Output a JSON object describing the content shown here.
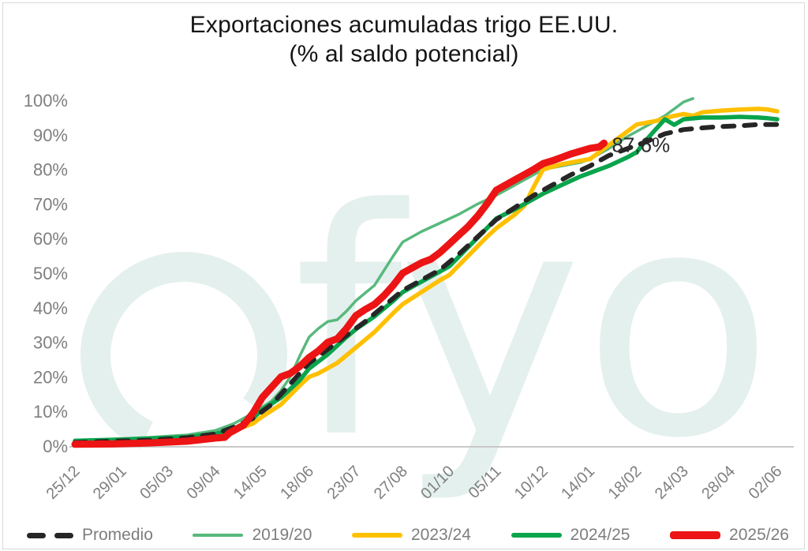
{
  "title": {
    "line1": "Exportaciones acumuladas trigo EE.UU.",
    "line2": "(% al saldo potencial)"
  },
  "watermark": {
    "text": "fyo",
    "color": "#E4F0ED"
  },
  "chart_data": {
    "type": "line",
    "title": "Exportaciones acumuladas trigo EE.UU. (% al saldo potencial)",
    "xlabel": "",
    "ylabel": "",
    "x_unit": "weeks from 25/12 (weekly data, tick every 5 weeks, dd/mm)",
    "xlim": [
      0,
      75
    ],
    "ylim": [
      0,
      100
    ],
    "grid": false,
    "legend_position": "bottom",
    "yticks": [
      0,
      10,
      20,
      30,
      40,
      50,
      60,
      70,
      80,
      90,
      100
    ],
    "xticks": [
      {
        "label": "25/12",
        "week": 0
      },
      {
        "label": "29/01",
        "week": 5
      },
      {
        "label": "05/03",
        "week": 10
      },
      {
        "label": "09/04",
        "week": 15
      },
      {
        "label": "14/05",
        "week": 20
      },
      {
        "label": "18/06",
        "week": 25
      },
      {
        "label": "23/07",
        "week": 30
      },
      {
        "label": "27/08",
        "week": 35
      },
      {
        "label": "01/10",
        "week": 40
      },
      {
        "label": "05/11",
        "week": 45
      },
      {
        "label": "10/12",
        "week": 50
      },
      {
        "label": "14/01",
        "week": 55
      },
      {
        "label": "18/02",
        "week": 60
      },
      {
        "label": "24/03",
        "week": 65
      },
      {
        "label": "28/04",
        "week": 70
      },
      {
        "label": "02/06",
        "week": 75
      }
    ],
    "annotation": {
      "text": "87,6%",
      "week": 56.5,
      "value": 87.6,
      "series": "2025/26"
    },
    "series": [
      {
        "name": "Promedio",
        "color": "#262626",
        "width": 6,
        "dash": true,
        "z": 4,
        "points": [
          [
            0,
            1
          ],
          [
            4,
            1.4
          ],
          [
            8,
            1.7
          ],
          [
            12,
            2.4
          ],
          [
            15,
            3.5
          ],
          [
            17,
            5.5
          ],
          [
            19,
            8
          ],
          [
            21,
            12
          ],
          [
            23,
            18
          ],
          [
            25,
            24
          ],
          [
            27,
            28
          ],
          [
            29,
            32
          ],
          [
            31,
            36
          ],
          [
            33,
            40.5
          ],
          [
            35,
            45
          ],
          [
            37,
            48
          ],
          [
            39,
            51
          ],
          [
            41,
            55.5
          ],
          [
            43,
            60.5
          ],
          [
            45,
            65.5
          ],
          [
            47,
            69
          ],
          [
            49,
            72.5
          ],
          [
            51,
            75.5
          ],
          [
            53,
            78.5
          ],
          [
            55,
            81
          ],
          [
            57,
            84
          ],
          [
            59,
            86
          ],
          [
            61,
            88
          ],
          [
            63,
            90.3
          ],
          [
            65,
            91.5
          ],
          [
            67,
            92
          ],
          [
            69,
            92.4
          ],
          [
            71,
            92.6
          ],
          [
            73,
            93
          ],
          [
            75,
            93
          ]
        ]
      },
      {
        "name": "2019/20",
        "color": "#58B97C",
        "width": 3.5,
        "dash": false,
        "z": 1,
        "points": [
          [
            0,
            1.5
          ],
          [
            4,
            2
          ],
          [
            8,
            2.5
          ],
          [
            12,
            3.2
          ],
          [
            15,
            4.5
          ],
          [
            17,
            6.5
          ],
          [
            19,
            9.5
          ],
          [
            21,
            13
          ],
          [
            22,
            16
          ],
          [
            23,
            20
          ],
          [
            24,
            26
          ],
          [
            25,
            31.5
          ],
          [
            26,
            34
          ],
          [
            27,
            36
          ],
          [
            28,
            36.5
          ],
          [
            29,
            39
          ],
          [
            30,
            42
          ],
          [
            32,
            46.5
          ],
          [
            34,
            55
          ],
          [
            35,
            59
          ],
          [
            37,
            62
          ],
          [
            39,
            64.5
          ],
          [
            41,
            67
          ],
          [
            43,
            70
          ],
          [
            45,
            72.5
          ],
          [
            47,
            75.5
          ],
          [
            49,
            78.5
          ],
          [
            50,
            80
          ],
          [
            52,
            81
          ],
          [
            54,
            82
          ],
          [
            55,
            83
          ],
          [
            57,
            86
          ],
          [
            59,
            89.5
          ],
          [
            61,
            92.5
          ],
          [
            63,
            95.5
          ],
          [
            65,
            99.5
          ],
          [
            66,
            100.5
          ]
        ]
      },
      {
        "name": "2023/24",
        "color": "#FFC000",
        "width": 5.5,
        "dash": false,
        "z": 2,
        "points": [
          [
            0,
            1
          ],
          [
            4,
            1.3
          ],
          [
            8,
            1.7
          ],
          [
            12,
            2.2
          ],
          [
            15,
            3
          ],
          [
            17,
            4.5
          ],
          [
            19,
            6.5
          ],
          [
            20,
            8.5
          ],
          [
            22,
            12
          ],
          [
            24,
            17.5
          ],
          [
            25,
            20
          ],
          [
            26,
            21
          ],
          [
            28,
            24
          ],
          [
            30,
            28.5
          ],
          [
            32,
            33
          ],
          [
            34,
            38.5
          ],
          [
            35,
            41
          ],
          [
            37,
            44.5
          ],
          [
            39,
            48
          ],
          [
            40,
            49.5
          ],
          [
            42,
            55
          ],
          [
            44,
            60.5
          ],
          [
            45,
            63
          ],
          [
            47,
            67
          ],
          [
            48,
            69.5
          ],
          [
            49,
            75
          ],
          [
            50,
            80
          ],
          [
            52,
            81.5
          ],
          [
            54,
            82.5
          ],
          [
            55,
            83
          ],
          [
            57,
            87
          ],
          [
            59,
            91
          ],
          [
            60,
            93
          ],
          [
            62,
            94
          ],
          [
            64,
            95.5
          ],
          [
            65,
            96
          ],
          [
            66,
            95.5
          ],
          [
            67,
            96.5
          ],
          [
            69,
            97
          ],
          [
            71,
            97.3
          ],
          [
            73,
            97.5
          ],
          [
            74,
            97.3
          ],
          [
            75,
            96.8
          ]
        ]
      },
      {
        "name": "2024/25",
        "color": "#0AA44C",
        "width": 5.5,
        "dash": false,
        "z": 3,
        "points": [
          [
            0,
            1.5
          ],
          [
            4,
            1.8
          ],
          [
            8,
            2.1
          ],
          [
            12,
            2.6
          ],
          [
            15,
            3.5
          ],
          [
            17,
            5
          ],
          [
            19,
            8
          ],
          [
            20,
            10.5
          ],
          [
            22,
            14
          ],
          [
            24,
            19
          ],
          [
            25,
            22.4
          ],
          [
            27,
            26.5
          ],
          [
            29,
            31.5
          ],
          [
            30,
            33.8
          ],
          [
            32,
            37.5
          ],
          [
            34,
            42
          ],
          [
            35,
            44.5
          ],
          [
            37,
            47.5
          ],
          [
            39,
            50.5
          ],
          [
            40,
            52
          ],
          [
            42,
            57.5
          ],
          [
            44,
            63
          ],
          [
            45,
            65.8
          ],
          [
            47,
            68.5
          ],
          [
            49,
            71.5
          ],
          [
            50,
            73
          ],
          [
            52,
            75.5
          ],
          [
            54,
            78
          ],
          [
            55,
            79
          ],
          [
            57,
            81
          ],
          [
            59,
            83.5
          ],
          [
            60,
            85
          ],
          [
            61,
            88.5
          ],
          [
            62,
            91.5
          ],
          [
            63,
            94.5
          ],
          [
            64,
            92.9
          ],
          [
            65,
            94.5
          ],
          [
            67,
            95
          ],
          [
            69,
            95
          ],
          [
            71,
            95.2
          ],
          [
            73,
            95
          ],
          [
            74,
            94.8
          ],
          [
            75,
            94.5
          ]
        ]
      },
      {
        "name": "2025/26",
        "color": "#EC1414",
        "width": 9,
        "dash": false,
        "z": 5,
        "points": [
          [
            0,
            0.5
          ],
          [
            4,
            0.6
          ],
          [
            8,
            0.9
          ],
          [
            12,
            1.4
          ],
          [
            15,
            2.3
          ],
          [
            16,
            2.5
          ],
          [
            16.5,
            3.8
          ],
          [
            18,
            6
          ],
          [
            19,
            9.5
          ],
          [
            20,
            14
          ],
          [
            21,
            17
          ],
          [
            22,
            20
          ],
          [
            23,
            21
          ],
          [
            24,
            23
          ],
          [
            25,
            25.6
          ],
          [
            26,
            27.5
          ],
          [
            27,
            30
          ],
          [
            28,
            31
          ],
          [
            29,
            34
          ],
          [
            30,
            37.7
          ],
          [
            31,
            39.5
          ],
          [
            32,
            41
          ],
          [
            33,
            43.5
          ],
          [
            34,
            46.5
          ],
          [
            35,
            50
          ],
          [
            36,
            51.5
          ],
          [
            37,
            53
          ],
          [
            38,
            54
          ],
          [
            39,
            56
          ],
          [
            40,
            58.5
          ],
          [
            41,
            61
          ],
          [
            42,
            63.5
          ],
          [
            43,
            66.5
          ],
          [
            44,
            70
          ],
          [
            45,
            74
          ],
          [
            46,
            75.5
          ],
          [
            47,
            77
          ],
          [
            48,
            78.5
          ],
          [
            49,
            80
          ],
          [
            50,
            81.7
          ],
          [
            51,
            82.5
          ],
          [
            52,
            83.5
          ],
          [
            53,
            84.5
          ],
          [
            54,
            85.3
          ],
          [
            55,
            86.1
          ],
          [
            56,
            86.5
          ],
          [
            56.5,
            87.6
          ]
        ]
      }
    ]
  }
}
